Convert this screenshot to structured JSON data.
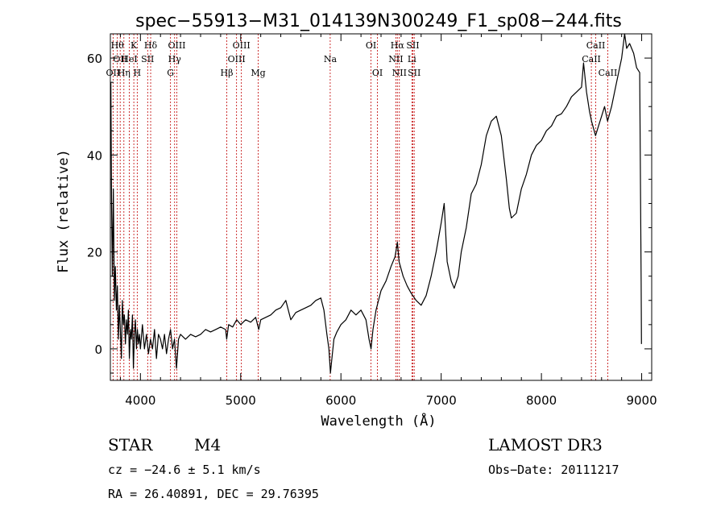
{
  "chart_data": {
    "type": "line",
    "title": "spec−55913−M31_014139N300249_F1_sp08−244.fits",
    "xlabel": "Wavelength (Å)",
    "ylabel": "Flux (relative)",
    "xlim": [
      3700,
      9100
    ],
    "ylim": [
      -6.5,
      65
    ],
    "x_ticks": [
      4000,
      5000,
      6000,
      7000,
      8000,
      9000
    ],
    "y_ticks": [
      0,
      20,
      40,
      60
    ],
    "x_minor_step": 200,
    "y_minor_step": 5,
    "grid": false,
    "series": [
      {
        "name": "flux",
        "points": [
          [
            3705,
            55
          ],
          [
            3712,
            30
          ],
          [
            3720,
            15
          ],
          [
            3730,
            33
          ],
          [
            3740,
            10
          ],
          [
            3750,
            17
          ],
          [
            3760,
            8
          ],
          [
            3770,
            13
          ],
          [
            3780,
            2
          ],
          [
            3790,
            9
          ],
          [
            3800,
            4
          ],
          [
            3810,
            -2
          ],
          [
            3820,
            10
          ],
          [
            3830,
            5
          ],
          [
            3840,
            7
          ],
          [
            3850,
            1
          ],
          [
            3860,
            6
          ],
          [
            3870,
            3
          ],
          [
            3880,
            8
          ],
          [
            3890,
            -2
          ],
          [
            3900,
            4
          ],
          [
            3910,
            2
          ],
          [
            3920,
            7
          ],
          [
            3930,
            -4
          ],
          [
            3940,
            3
          ],
          [
            3950,
            6
          ],
          [
            3960,
            0
          ],
          [
            3970,
            4
          ],
          [
            3980,
            1
          ],
          [
            3990,
            3
          ],
          [
            4000,
            0
          ],
          [
            4020,
            5
          ],
          [
            4040,
            0
          ],
          [
            4060,
            3
          ],
          [
            4080,
            -1
          ],
          [
            4100,
            2
          ],
          [
            4120,
            0
          ],
          [
            4140,
            4
          ],
          [
            4160,
            -2
          ],
          [
            4180,
            3
          ],
          [
            4200,
            2
          ],
          [
            4220,
            0
          ],
          [
            4240,
            3
          ],
          [
            4260,
            -1
          ],
          [
            4280,
            2
          ],
          [
            4300,
            4
          ],
          [
            4320,
            0
          ],
          [
            4340,
            2
          ],
          [
            4360,
            -4
          ],
          [
            4380,
            2
          ],
          [
            4400,
            3
          ],
          [
            4450,
            2
          ],
          [
            4500,
            3
          ],
          [
            4550,
            2.5
          ],
          [
            4600,
            3
          ],
          [
            4650,
            4
          ],
          [
            4700,
            3.5
          ],
          [
            4750,
            4
          ],
          [
            4800,
            4.5
          ],
          [
            4850,
            4
          ],
          [
            4860,
            2
          ],
          [
            4880,
            5
          ],
          [
            4920,
            4.5
          ],
          [
            4960,
            6
          ],
          [
            5000,
            5
          ],
          [
            5050,
            6
          ],
          [
            5100,
            5.5
          ],
          [
            5150,
            6.5
          ],
          [
            5180,
            4
          ],
          [
            5200,
            6
          ],
          [
            5250,
            6.5
          ],
          [
            5300,
            7
          ],
          [
            5350,
            8
          ],
          [
            5400,
            8.5
          ],
          [
            5450,
            10
          ],
          [
            5500,
            6
          ],
          [
            5550,
            7.5
          ],
          [
            5600,
            8
          ],
          [
            5650,
            8.5
          ],
          [
            5700,
            9
          ],
          [
            5750,
            10
          ],
          [
            5800,
            10.5
          ],
          [
            5830,
            8
          ],
          [
            5860,
            3
          ],
          [
            5880,
            0
          ],
          [
            5895,
            -5
          ],
          [
            5910,
            -2
          ],
          [
            5930,
            2
          ],
          [
            5960,
            3.5
          ],
          [
            6000,
            5
          ],
          [
            6050,
            6
          ],
          [
            6100,
            8
          ],
          [
            6150,
            7
          ],
          [
            6200,
            8
          ],
          [
            6250,
            6
          ],
          [
            6280,
            2
          ],
          [
            6300,
            0
          ],
          [
            6320,
            4
          ],
          [
            6350,
            8
          ],
          [
            6400,
            12
          ],
          [
            6450,
            14
          ],
          [
            6500,
            17
          ],
          [
            6540,
            19
          ],
          [
            6563,
            22
          ],
          [
            6580,
            18
          ],
          [
            6620,
            15
          ],
          [
            6660,
            13
          ],
          [
            6700,
            11.5
          ],
          [
            6750,
            10
          ],
          [
            6800,
            9
          ],
          [
            6850,
            11
          ],
          [
            6900,
            15
          ],
          [
            6950,
            20
          ],
          [
            7000,
            26
          ],
          [
            7030,
            30
          ],
          [
            7060,
            18
          ],
          [
            7100,
            14
          ],
          [
            7130,
            12.5
          ],
          [
            7170,
            15
          ],
          [
            7200,
            20
          ],
          [
            7250,
            25
          ],
          [
            7300,
            32
          ],
          [
            7350,
            34
          ],
          [
            7400,
            38
          ],
          [
            7450,
            44
          ],
          [
            7500,
            47
          ],
          [
            7550,
            48
          ],
          [
            7600,
            44
          ],
          [
            7650,
            35
          ],
          [
            7680,
            29
          ],
          [
            7700,
            27
          ],
          [
            7750,
            28
          ],
          [
            7800,
            33
          ],
          [
            7850,
            36
          ],
          [
            7900,
            40
          ],
          [
            7950,
            42
          ],
          [
            8000,
            43
          ],
          [
            8050,
            45
          ],
          [
            8100,
            46
          ],
          [
            8150,
            48
          ],
          [
            8200,
            48.5
          ],
          [
            8250,
            50
          ],
          [
            8300,
            52
          ],
          [
            8350,
            53
          ],
          [
            8400,
            54
          ],
          [
            8420,
            59
          ],
          [
            8450,
            53
          ],
          [
            8480,
            49
          ],
          [
            8500,
            47
          ],
          [
            8540,
            44
          ],
          [
            8570,
            46
          ],
          [
            8600,
            48
          ],
          [
            8630,
            50
          ],
          [
            8660,
            47
          ],
          [
            8700,
            50
          ],
          [
            8750,
            55
          ],
          [
            8800,
            60
          ],
          [
            8830,
            68
          ],
          [
            8850,
            62
          ],
          [
            8880,
            63
          ],
          [
            8920,
            61
          ],
          [
            8950,
            58
          ],
          [
            8980,
            57
          ],
          [
            8995,
            14
          ],
          [
            8998,
            1
          ]
        ]
      }
    ],
    "spectral_lines": [
      {
        "wavelength": 3727,
        "label": "OII",
        "row": 3
      },
      {
        "wavelength": 3770,
        "label": "Hθ",
        "row": 1
      },
      {
        "wavelength": 3798,
        "label": "OII",
        "row": 2
      },
      {
        "wavelength": 3835,
        "label": "Hη",
        "row": 3
      },
      {
        "wavelength": 3889,
        "label": "HeI",
        "row": 2
      },
      {
        "wavelength": 3934,
        "label": "K",
        "row": 1
      },
      {
        "wavelength": 3968,
        "label": "H",
        "row": 3
      },
      {
        "wavelength": 4072,
        "label": "SII",
        "row": 2
      },
      {
        "wavelength": 4102,
        "label": "Hδ",
        "row": 1
      },
      {
        "wavelength": 4300,
        "label": "G",
        "row": 3
      },
      {
        "wavelength": 4341,
        "label": "Hγ",
        "row": 2
      },
      {
        "wavelength": 4363,
        "label": "OIII",
        "row": 1
      },
      {
        "wavelength": 4861,
        "label": "Hβ",
        "row": 3
      },
      {
        "wavelength": 4959,
        "label": "OIII",
        "row": 2
      },
      {
        "wavelength": 5007,
        "label": "OIII",
        "row": 1
      },
      {
        "wavelength": 5175,
        "label": "Mg",
        "row": 3
      },
      {
        "wavelength": 5893,
        "label": "Na",
        "row": 2
      },
      {
        "wavelength": 6300,
        "label": "OI",
        "row": 1
      },
      {
        "wavelength": 6364,
        "label": "OI",
        "row": 3
      },
      {
        "wavelength": 6548,
        "label": "NII",
        "row": 2
      },
      {
        "wavelength": 6563,
        "label": "Hα",
        "row": 1
      },
      {
        "wavelength": 6583,
        "label": "NII",
        "row": 3
      },
      {
        "wavelength": 6708,
        "label": "Li",
        "row": 2
      },
      {
        "wavelength": 6717,
        "label": "SII",
        "row": 1
      },
      {
        "wavelength": 6731,
        "label": "SII",
        "row": 3
      },
      {
        "wavelength": 8498,
        "label": "CaII",
        "row": 2
      },
      {
        "wavelength": 8542,
        "label": "CaII",
        "row": 1
      },
      {
        "wavelength": 8662,
        "label": "CaII",
        "row": 3
      }
    ],
    "line_color": "#000000",
    "marker_color": "#c00000"
  },
  "info": {
    "class": "STAR",
    "subclass": "M4",
    "survey": "LAMOST DR3",
    "redshift": "cz = −24.6 ± 5.1 km/s",
    "obs_date": "Obs−Date: 20111217",
    "coords": "RA =  26.40891, DEC =  29.76395"
  }
}
